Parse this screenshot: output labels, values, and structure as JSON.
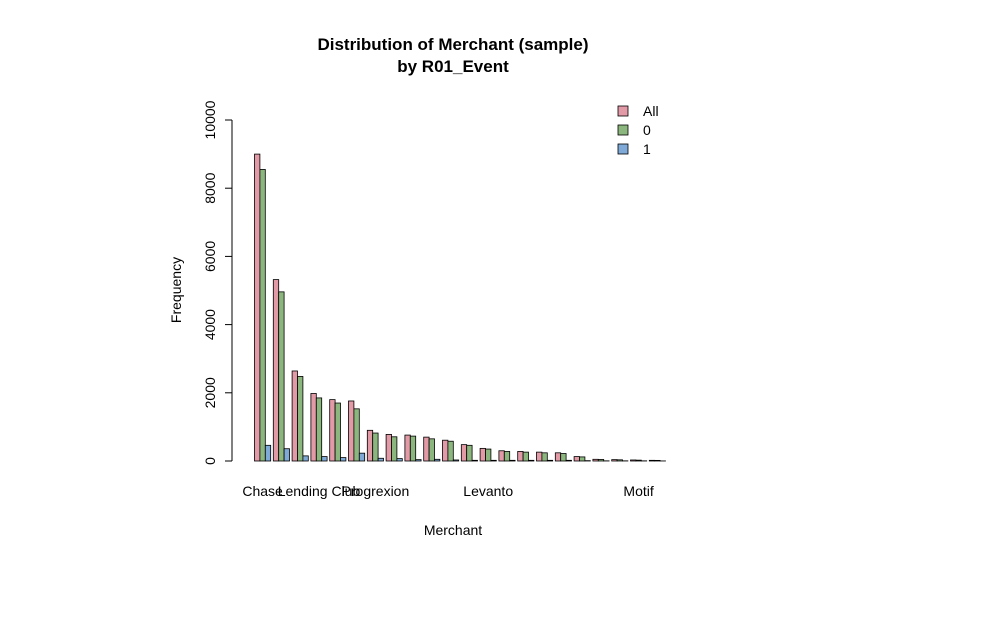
{
  "chart_data": {
    "type": "bar",
    "title": "Distribution of Merchant (sample)",
    "subtitle": "by R01_Event",
    "xlabel": "Merchant",
    "ylabel": "Frequency",
    "ylim": [
      0,
      10000
    ],
    "yticks": [
      "0",
      "2000",
      "4000",
      "6000",
      "8000",
      "10000"
    ],
    "categories": [
      "Chase",
      "",
      "",
      "Lending Club",
      "",
      "",
      "Progrexion",
      "",
      "",
      "",
      "",
      "",
      "Levanto",
      "",
      "",
      "",
      "",
      "",
      "",
      "",
      "Motif",
      ""
    ],
    "series": [
      {
        "name": "All",
        "color": "#e29aa7",
        "values": [
          9000,
          5320,
          2640,
          1980,
          1800,
          1760,
          900,
          780,
          760,
          700,
          610,
          480,
          370,
          300,
          280,
          260,
          240,
          130,
          50,
          40,
          30,
          20
        ]
      },
      {
        "name": "0",
        "color": "#8bb77e",
        "values": [
          8550,
          4960,
          2480,
          1850,
          1700,
          1530,
          820,
          710,
          730,
          650,
          580,
          460,
          350,
          280,
          260,
          240,
          220,
          120,
          45,
          35,
          25,
          18
        ]
      },
      {
        "name": "1",
        "color": "#7fa9d6",
        "values": [
          460,
          360,
          150,
          130,
          100,
          230,
          80,
          70,
          40,
          50,
          30,
          20,
          20,
          20,
          20,
          20,
          20,
          10,
          5,
          5,
          5,
          2
        ]
      }
    ],
    "legend": "top-right",
    "grid": false
  }
}
